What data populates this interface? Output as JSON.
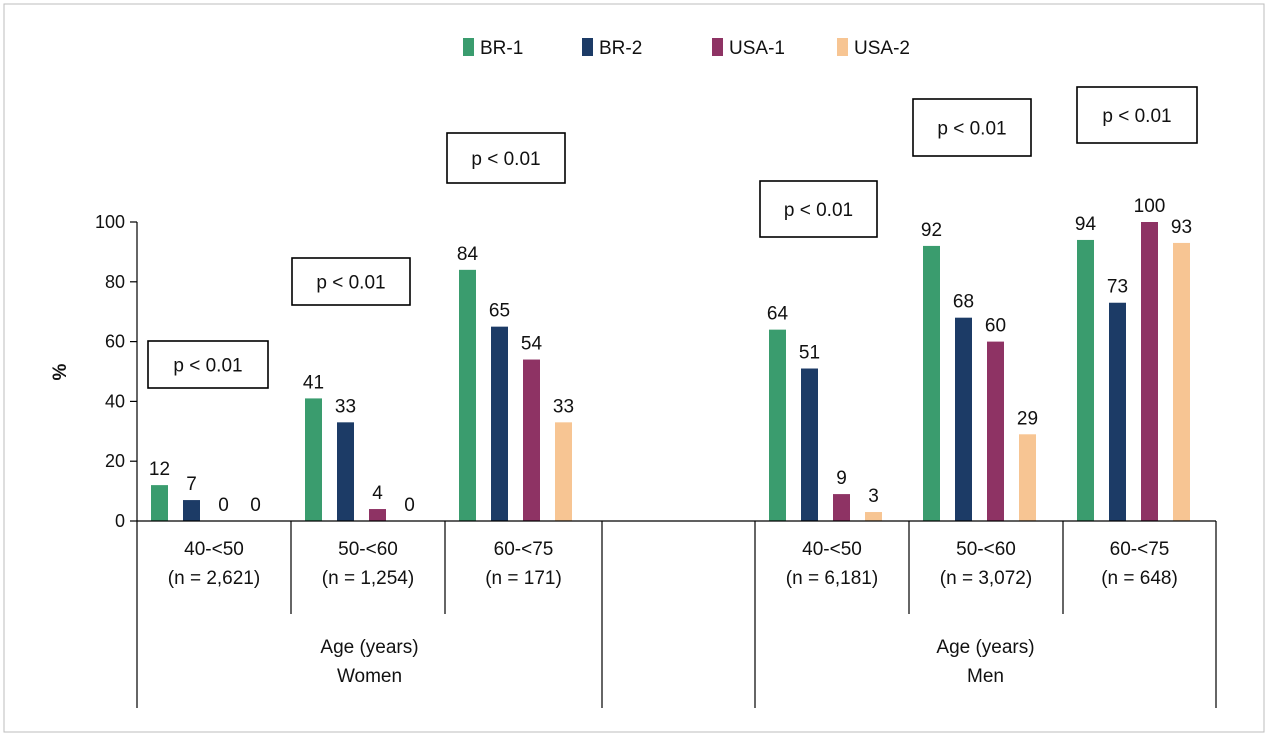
{
  "chart_data": {
    "type": "bar",
    "ylabel": "%",
    "ylim": [
      0,
      100
    ],
    "yticks": [
      "0",
      "20",
      "40",
      "60",
      "80",
      "100"
    ],
    "grid": false,
    "legend_position": "top",
    "series": [
      {
        "name": "BR-1",
        "color": "#3a9c6e"
      },
      {
        "name": "BR-2",
        "color": "#1c3b66"
      },
      {
        "name": "USA-1",
        "color": "#8e3364"
      },
      {
        "name": "USA-2",
        "color": "#f7c593"
      }
    ],
    "groups": [
      {
        "label": "Age (years)",
        "sublabel": "Women",
        "categories": [
          {
            "name": "40-<50",
            "n": "(n = 2,621)",
            "values": [
              12,
              7,
              0,
              0
            ],
            "labels": [
              "12",
              "7",
              "0",
              "0"
            ],
            "p": "p < 0.01"
          },
          {
            "name": "50-<60",
            "n": "(n = 1,254)",
            "values": [
              41,
              33,
              4,
              0
            ],
            "labels": [
              "41",
              "33",
              "4",
              "0"
            ],
            "p": "p < 0.01"
          },
          {
            "name": "60-<75",
            "n": "(n = 171)",
            "values": [
              84,
              65,
              54,
              33
            ],
            "labels": [
              "84",
              "65",
              "54",
              "33"
            ],
            "p": "p < 0.01"
          }
        ]
      },
      {
        "label": "Age (years)",
        "sublabel": "Men",
        "categories": [
          {
            "name": "40-<50",
            "n": "(n = 6,181)",
            "values": [
              64,
              51,
              9,
              3
            ],
            "labels": [
              "64",
              "51",
              "9",
              "3"
            ],
            "p": "p < 0.01"
          },
          {
            "name": "50-<60",
            "n": "(n = 3,072)",
            "values": [
              92,
              68,
              60,
              29
            ],
            "labels": [
              "92",
              "68",
              "60",
              "29"
            ],
            "p": "p < 0.01"
          },
          {
            "name": "60-<75",
            "n": "(n = 648)",
            "values": [
              94,
              73,
              100,
              93
            ],
            "labels": [
              "94",
              "73",
              "100",
              "93"
            ],
            "p": "p < 0.01"
          }
        ]
      }
    ]
  }
}
